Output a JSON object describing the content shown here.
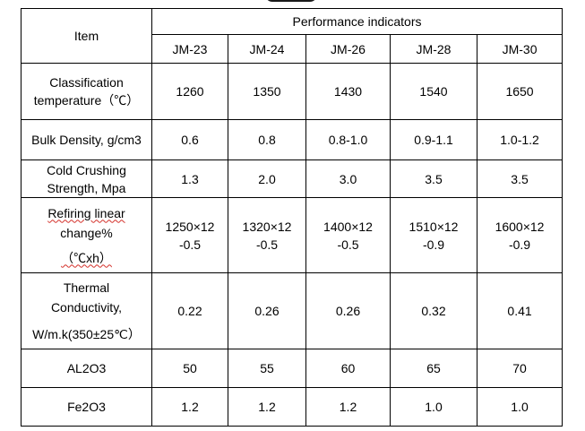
{
  "table": {
    "item_header": "Item",
    "group_header": "Performance indicators",
    "models": [
      "JM-23",
      "JM-24",
      "JM-26",
      "JM-28",
      "JM-30"
    ],
    "rows": [
      {
        "label_lines": [
          "Classification",
          "temperature（℃）"
        ],
        "values": [
          "1260",
          "1350",
          "1430",
          "1540",
          "1650"
        ]
      },
      {
        "label_lines": [
          "Bulk Density, g/cm3"
        ],
        "values": [
          "0.6",
          "0.8",
          "0.8-1.0",
          "0.9-1.1",
          "1.0-1.2"
        ]
      },
      {
        "label_lines": [
          "Cold Crushing",
          "Strength, Mpa"
        ],
        "values": [
          "1.3",
          "2.0",
          "3.0",
          "3.5",
          "3.5"
        ]
      },
      {
        "label_lines": [
          "Refiring linear",
          "change%",
          "（℃xh）"
        ],
        "values": [
          [
            "1250×12",
            "-0.5"
          ],
          [
            "1320×12",
            "-0.5"
          ],
          [
            "1400×12",
            "-0.5"
          ],
          [
            "1510×12",
            "-0.9"
          ],
          [
            "1600×12",
            "-0.9"
          ]
        ]
      },
      {
        "label_lines": [
          "Thermal",
          "Conductivity,",
          "W/m.k(350±25℃）"
        ],
        "values": [
          "0.22",
          "0.26",
          "0.26",
          "0.32",
          "0.41"
        ]
      },
      {
        "label_lines": [
          "AL2O3"
        ],
        "values": [
          "50",
          "55",
          "60",
          "65",
          "70"
        ]
      },
      {
        "label_lines": [
          "Fe2O3"
        ],
        "values": [
          "1.2",
          "1.2",
          "1.2",
          "1.0",
          "1.0"
        ]
      }
    ]
  }
}
